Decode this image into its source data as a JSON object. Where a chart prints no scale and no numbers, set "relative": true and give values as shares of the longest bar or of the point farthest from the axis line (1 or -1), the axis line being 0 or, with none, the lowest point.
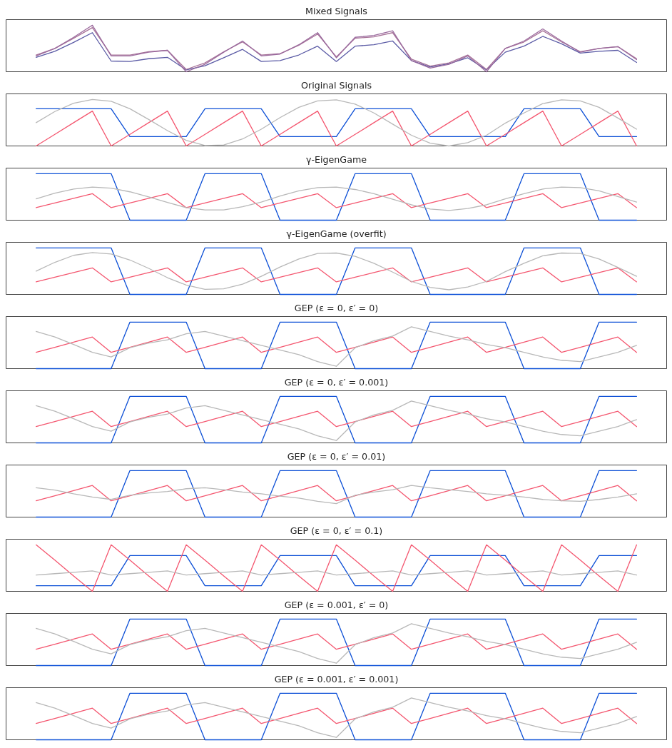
{
  "chart_data": [
    {
      "type": "line",
      "title": "Mixed Signals",
      "relative": true,
      "categories": [
        null,
        null,
        null,
        null,
        null,
        null,
        null,
        null,
        null,
        null,
        null,
        null,
        null,
        null,
        null,
        null,
        null,
        null,
        null,
        null,
        null,
        null,
        null,
        null,
        null,
        null,
        null,
        null,
        null,
        null,
        null,
        null,
        null
      ],
      "series": [
        {
          "color": "#5a5aa5",
          "values": [
            0.31,
            0.44,
            0.63,
            0.84,
            0.23,
            0.22,
            0.28,
            0.31,
            0.04,
            0.13,
            0.3,
            0.48,
            0.22,
            0.24,
            0.36,
            0.55,
            0.22,
            0.55,
            0.58,
            0.66,
            0.24,
            0.1,
            0.17,
            0.3,
            0.04,
            0.42,
            0.55,
            0.76,
            0.6,
            0.4,
            0.44,
            0.46,
            0.2
          ]
        },
        {
          "color": "#a77298",
          "values": [
            0.36,
            0.5,
            0.72,
            0.95,
            0.36,
            0.36,
            0.43,
            0.46,
            0.05,
            0.19,
            0.43,
            0.64,
            0.36,
            0.39,
            0.57,
            0.81,
            0.32,
            0.72,
            0.75,
            0.84,
            0.27,
            0.12,
            0.19,
            0.36,
            0.05,
            0.5,
            0.64,
            0.88,
            0.64,
            0.43,
            0.5,
            0.54,
            0.28
          ]
        },
        {
          "color": "#9b6b9e",
          "values": [
            0.34,
            0.5,
            0.74,
            1,
            0.34,
            0.34,
            0.42,
            0.46,
            0,
            0.16,
            0.42,
            0.66,
            0.34,
            0.38,
            0.58,
            0.84,
            0.3,
            0.74,
            0.78,
            0.88,
            0.24,
            0.08,
            0.16,
            0.34,
            0,
            0.5,
            0.66,
            0.92,
            0.66,
            0.42,
            0.5,
            0.54,
            0.26
          ]
        }
      ]
    },
    {
      "type": "line",
      "title": "Original Signals",
      "relative": true,
      "categories": [
        null,
        null,
        null,
        null,
        null,
        null,
        null,
        null,
        null,
        null,
        null,
        null,
        null,
        null,
        null,
        null,
        null,
        null,
        null,
        null,
        null,
        null,
        null,
        null,
        null,
        null,
        null,
        null,
        null,
        null,
        null,
        null,
        null
      ],
      "series": [
        {
          "color": "#0c4fd6",
          "values": [
            0.8,
            0.8,
            0.8,
            0.8,
            0.8,
            0.2,
            0.2,
            0.2,
            0.2,
            0.8,
            0.8,
            0.8,
            0.8,
            0.2,
            0.2,
            0.2,
            0.2,
            0.8,
            0.8,
            0.8,
            0.8,
            0.2,
            0.2,
            0.2,
            0.2,
            0.2,
            0.8,
            0.8,
            0.8,
            0.8,
            0.2,
            0.2,
            0.2
          ]
        },
        {
          "color": "#f4566f",
          "values": [
            0,
            0.25,
            0.5,
            0.75,
            0,
            0.25,
            0.5,
            0.75,
            0,
            0.25,
            0.5,
            0.75,
            0,
            0.25,
            0.5,
            0.75,
            0,
            0.25,
            0.5,
            0.75,
            0,
            0.25,
            0.5,
            0.75,
            0,
            0.25,
            0.5,
            0.75,
            0,
            0.25,
            0.5,
            0.75,
            0
          ]
        },
        {
          "color": "#b8b8b8",
          "values": [
            0.5,
            0.74,
            0.92,
            1,
            0.96,
            0.8,
            0.57,
            0.33,
            0.12,
            0.01,
            0.02,
            0.15,
            0.36,
            0.61,
            0.83,
            0.97,
            0.99,
            0.9,
            0.71,
            0.47,
            0.23,
            0.06,
            0,
            0.07,
            0.23,
            0.49,
            0.71,
            0.91,
            0.99,
            0.97,
            0.83,
            0.6,
            0.36
          ]
        }
      ]
    },
    {
      "type": "line",
      "title": "γ-EigenGame",
      "relative": true,
      "categories": [
        null,
        null,
        null,
        null,
        null,
        null,
        null,
        null,
        null,
        null,
        null,
        null,
        null,
        null,
        null,
        null,
        null,
        null,
        null,
        null,
        null,
        null,
        null,
        null,
        null,
        null,
        null,
        null,
        null,
        null,
        null,
        null,
        null
      ],
      "series": [
        {
          "color": "#0c4fd6",
          "values": [
            1,
            1,
            1,
            1,
            1,
            0,
            0,
            0,
            0,
            1,
            1,
            1,
            1,
            0,
            0,
            0,
            0,
            1,
            1,
            1,
            1,
            0,
            0,
            0,
            0,
            0,
            1,
            1,
            1,
            1,
            0,
            0,
            0
          ]
        },
        {
          "color": "#f4566f",
          "values": [
            0.27,
            0.37,
            0.47,
            0.57,
            0.27,
            0.37,
            0.47,
            0.57,
            0.27,
            0.37,
            0.47,
            0.57,
            0.27,
            0.37,
            0.47,
            0.57,
            0.27,
            0.37,
            0.47,
            0.57,
            0.27,
            0.37,
            0.47,
            0.57,
            0.27,
            0.37,
            0.47,
            0.57,
            0.27,
            0.37,
            0.47,
            0.57,
            0.27
          ]
        },
        {
          "color": "#b8b8b8",
          "values": [
            0.46,
            0.58,
            0.67,
            0.71,
            0.69,
            0.61,
            0.5,
            0.38,
            0.27,
            0.22,
            0.22,
            0.29,
            0.39,
            0.52,
            0.63,
            0.7,
            0.71,
            0.66,
            0.57,
            0.45,
            0.33,
            0.24,
            0.21,
            0.25,
            0.33,
            0.46,
            0.57,
            0.67,
            0.71,
            0.7,
            0.63,
            0.51,
            0.39
          ]
        }
      ]
    },
    {
      "type": "line",
      "title": "γ-EigenGame (overfit)",
      "relative": true,
      "categories": [
        null,
        null,
        null,
        null,
        null,
        null,
        null,
        null,
        null,
        null,
        null,
        null,
        null,
        null,
        null,
        null,
        null,
        null,
        null,
        null,
        null,
        null,
        null,
        null,
        null,
        null,
        null,
        null,
        null,
        null,
        null,
        null,
        null
      ],
      "series": [
        {
          "color": "#0c4fd6",
          "values": [
            1,
            1,
            1,
            1,
            1,
            0,
            0,
            0,
            0,
            1,
            1,
            1,
            1,
            0,
            0,
            0,
            0,
            1,
            1,
            1,
            1,
            0,
            0,
            0,
            0,
            0,
            1,
            1,
            1,
            1,
            0,
            0,
            0
          ]
        },
        {
          "color": "#f4566f",
          "values": [
            0.27,
            0.37,
            0.47,
            0.57,
            0.27,
            0.37,
            0.47,
            0.57,
            0.27,
            0.37,
            0.47,
            0.57,
            0.27,
            0.37,
            0.47,
            0.57,
            0.27,
            0.37,
            0.47,
            0.57,
            0.27,
            0.37,
            0.47,
            0.57,
            0.27,
            0.37,
            0.47,
            0.57,
            0.27,
            0.37,
            0.47,
            0.57,
            0.27
          ]
        },
        {
          "color": "#b8b8b8",
          "values": [
            0.5,
            0.69,
            0.84,
            0.9,
            0.87,
            0.74,
            0.56,
            0.36,
            0.2,
            0.11,
            0.12,
            0.22,
            0.39,
            0.59,
            0.76,
            0.88,
            0.89,
            0.82,
            0.67,
            0.48,
            0.28,
            0.15,
            0.1,
            0.16,
            0.28,
            0.49,
            0.67,
            0.83,
            0.89,
            0.88,
            0.76,
            0.58,
            0.39
          ]
        }
      ]
    },
    {
      "type": "line",
      "title": "GEP (ε = 0, ε′ = 0)",
      "relative": true,
      "categories": [
        null,
        null,
        null,
        null,
        null,
        null,
        null,
        null,
        null,
        null,
        null,
        null,
        null,
        null,
        null,
        null,
        null,
        null,
        null,
        null,
        null,
        null,
        null,
        null,
        null,
        null,
        null,
        null,
        null,
        null,
        null,
        null,
        null
      ],
      "series": [
        {
          "color": "#0c4fd6",
          "values": [
            0,
            0,
            0,
            0,
            0,
            1,
            1,
            1,
            1,
            0,
            0,
            0,
            0,
            1,
            1,
            1,
            1,
            0,
            0,
            0,
            0,
            1,
            1,
            1,
            1,
            1,
            0,
            0,
            0,
            0,
            1,
            1,
            1
          ]
        },
        {
          "color": "#f4566f",
          "values": [
            0.35,
            0.46,
            0.57,
            0.68,
            0.35,
            0.46,
            0.57,
            0.68,
            0.35,
            0.46,
            0.57,
            0.68,
            0.35,
            0.46,
            0.57,
            0.68,
            0.35,
            0.46,
            0.57,
            0.68,
            0.35,
            0.46,
            0.57,
            0.68,
            0.35,
            0.46,
            0.57,
            0.68,
            0.35,
            0.46,
            0.57,
            0.68,
            0.35
          ]
        },
        {
          "color": "#b8b8b8",
          "values": [
            0.8,
            0.68,
            0.52,
            0.35,
            0.25,
            0.45,
            0.55,
            0.62,
            0.75,
            0.8,
            0.7,
            0.6,
            0.5,
            0.4,
            0.3,
            0.15,
            0.05,
            0.45,
            0.6,
            0.7,
            0.9,
            0.8,
            0.7,
            0.62,
            0.52,
            0.45,
            0.35,
            0.25,
            0.18,
            0.15,
            0.25,
            0.35,
            0.5
          ]
        }
      ]
    },
    {
      "type": "line",
      "title": "GEP (ε = 0, ε′ = 0.001)",
      "relative": true,
      "categories": [
        null,
        null,
        null,
        null,
        null,
        null,
        null,
        null,
        null,
        null,
        null,
        null,
        null,
        null,
        null,
        null,
        null,
        null,
        null,
        null,
        null,
        null,
        null,
        null,
        null,
        null,
        null,
        null,
        null,
        null,
        null,
        null,
        null
      ],
      "series": [
        {
          "color": "#0c4fd6",
          "values": [
            0,
            0,
            0,
            0,
            0,
            1,
            1,
            1,
            1,
            0,
            0,
            0,
            0,
            1,
            1,
            1,
            1,
            0,
            0,
            0,
            0,
            1,
            1,
            1,
            1,
            1,
            0,
            0,
            0,
            0,
            1,
            1,
            1
          ]
        },
        {
          "color": "#f4566f",
          "values": [
            0.35,
            0.46,
            0.57,
            0.68,
            0.35,
            0.46,
            0.57,
            0.68,
            0.35,
            0.46,
            0.57,
            0.68,
            0.35,
            0.46,
            0.57,
            0.68,
            0.35,
            0.46,
            0.57,
            0.68,
            0.35,
            0.46,
            0.57,
            0.68,
            0.35,
            0.46,
            0.57,
            0.68,
            0.35,
            0.46,
            0.57,
            0.68,
            0.35
          ]
        },
        {
          "color": "#b8b8b8",
          "values": [
            0.8,
            0.68,
            0.52,
            0.35,
            0.25,
            0.45,
            0.55,
            0.62,
            0.75,
            0.8,
            0.7,
            0.6,
            0.5,
            0.4,
            0.3,
            0.15,
            0.05,
            0.45,
            0.6,
            0.7,
            0.9,
            0.8,
            0.7,
            0.62,
            0.52,
            0.45,
            0.35,
            0.25,
            0.18,
            0.15,
            0.25,
            0.35,
            0.5
          ]
        }
      ]
    },
    {
      "type": "line",
      "title": "GEP (ε = 0, ε′ = 0.01)",
      "relative": true,
      "categories": [
        null,
        null,
        null,
        null,
        null,
        null,
        null,
        null,
        null,
        null,
        null,
        null,
        null,
        null,
        null,
        null,
        null,
        null,
        null,
        null,
        null,
        null,
        null,
        null,
        null,
        null,
        null,
        null,
        null,
        null,
        null,
        null,
        null
      ],
      "series": [
        {
          "color": "#0c4fd6",
          "values": [
            0,
            0,
            0,
            0,
            0,
            1,
            1,
            1,
            1,
            0,
            0,
            0,
            0,
            1,
            1,
            1,
            1,
            0,
            0,
            0,
            0,
            1,
            1,
            1,
            1,
            1,
            0,
            0,
            0,
            0,
            1,
            1,
            1
          ]
        },
        {
          "color": "#f4566f",
          "values": [
            0.35,
            0.46,
            0.57,
            0.68,
            0.35,
            0.46,
            0.57,
            0.68,
            0.35,
            0.46,
            0.57,
            0.68,
            0.35,
            0.46,
            0.57,
            0.68,
            0.35,
            0.46,
            0.57,
            0.68,
            0.35,
            0.46,
            0.57,
            0.68,
            0.35,
            0.46,
            0.57,
            0.68,
            0.35,
            0.46,
            0.57,
            0.68,
            0.35
          ]
        },
        {
          "color": "#b8b8b8",
          "values": [
            0.63,
            0.58,
            0.5,
            0.43,
            0.38,
            0.47,
            0.52,
            0.55,
            0.61,
            0.63,
            0.59,
            0.54,
            0.5,
            0.45,
            0.41,
            0.34,
            0.29,
            0.47,
            0.54,
            0.59,
            0.68,
            0.63,
            0.59,
            0.55,
            0.5,
            0.47,
            0.43,
            0.38,
            0.35,
            0.34,
            0.38,
            0.43,
            0.5
          ]
        }
      ]
    },
    {
      "type": "line",
      "title": "GEP (ε = 0, ε′ = 0.1)",
      "relative": true,
      "categories": [
        null,
        null,
        null,
        null,
        null,
        null,
        null,
        null,
        null,
        null,
        null,
        null,
        null,
        null,
        null,
        null,
        null,
        null,
        null,
        null,
        null,
        null,
        null,
        null,
        null,
        null,
        null,
        null,
        null,
        null,
        null,
        null,
        null
      ],
      "series": [
        {
          "color": "#0c4fd6",
          "values": [
            0.12,
            0.12,
            0.12,
            0.12,
            0.12,
            0.77,
            0.77,
            0.77,
            0.77,
            0.12,
            0.12,
            0.12,
            0.12,
            0.77,
            0.77,
            0.77,
            0.77,
            0.12,
            0.12,
            0.12,
            0.12,
            0.77,
            0.77,
            0.77,
            0.77,
            0.77,
            0.12,
            0.12,
            0.12,
            0.12,
            0.77,
            0.77,
            0.77
          ]
        },
        {
          "color": "#f4566f",
          "values": [
            1,
            0.67,
            0.33,
            0,
            1,
            0.67,
            0.33,
            0,
            1,
            0.67,
            0.33,
            0,
            1,
            0.67,
            0.33,
            0,
            1,
            0.67,
            0.33,
            0,
            1,
            0.67,
            0.33,
            0,
            1,
            0.67,
            0.33,
            0,
            1,
            0.67,
            0.33,
            0,
            1
          ]
        },
        {
          "color": "#b8b8b8",
          "values": [
            0.35,
            0.38,
            0.41,
            0.44,
            0.35,
            0.38,
            0.41,
            0.44,
            0.35,
            0.38,
            0.41,
            0.44,
            0.35,
            0.38,
            0.41,
            0.44,
            0.35,
            0.38,
            0.41,
            0.44,
            0.35,
            0.38,
            0.41,
            0.44,
            0.35,
            0.38,
            0.41,
            0.44,
            0.35,
            0.38,
            0.41,
            0.44,
            0.35
          ]
        }
      ]
    },
    {
      "type": "line",
      "title": "GEP (ε = 0.001, ε′ = 0)",
      "relative": true,
      "categories": [
        null,
        null,
        null,
        null,
        null,
        null,
        null,
        null,
        null,
        null,
        null,
        null,
        null,
        null,
        null,
        null,
        null,
        null,
        null,
        null,
        null,
        null,
        null,
        null,
        null,
        null,
        null,
        null,
        null,
        null,
        null,
        null,
        null
      ],
      "series": [
        {
          "color": "#0c4fd6",
          "values": [
            0,
            0,
            0,
            0,
            0,
            1,
            1,
            1,
            1,
            0,
            0,
            0,
            0,
            1,
            1,
            1,
            1,
            0,
            0,
            0,
            0,
            1,
            1,
            1,
            1,
            1,
            0,
            0,
            0,
            0,
            1,
            1,
            1
          ]
        },
        {
          "color": "#f4566f",
          "values": [
            0.35,
            0.46,
            0.57,
            0.68,
            0.35,
            0.46,
            0.57,
            0.68,
            0.35,
            0.46,
            0.57,
            0.68,
            0.35,
            0.46,
            0.57,
            0.68,
            0.35,
            0.46,
            0.57,
            0.68,
            0.35,
            0.46,
            0.57,
            0.68,
            0.35,
            0.46,
            0.57,
            0.68,
            0.35,
            0.46,
            0.57,
            0.68,
            0.35
          ]
        },
        {
          "color": "#b8b8b8",
          "values": [
            0.8,
            0.68,
            0.52,
            0.35,
            0.25,
            0.45,
            0.55,
            0.62,
            0.75,
            0.8,
            0.7,
            0.6,
            0.5,
            0.4,
            0.3,
            0.15,
            0.05,
            0.45,
            0.6,
            0.7,
            0.9,
            0.8,
            0.7,
            0.62,
            0.52,
            0.45,
            0.35,
            0.25,
            0.18,
            0.15,
            0.25,
            0.35,
            0.5
          ]
        }
      ]
    },
    {
      "type": "line",
      "title": "GEP (ε = 0.001, ε′ = 0.001)",
      "relative": true,
      "categories": [
        null,
        null,
        null,
        null,
        null,
        null,
        null,
        null,
        null,
        null,
        null,
        null,
        null,
        null,
        null,
        null,
        null,
        null,
        null,
        null,
        null,
        null,
        null,
        null,
        null,
        null,
        null,
        null,
        null,
        null,
        null,
        null,
        null
      ],
      "series": [
        {
          "color": "#0c4fd6",
          "values": [
            0,
            0,
            0,
            0,
            0,
            1,
            1,
            1,
            1,
            0,
            0,
            0,
            0,
            1,
            1,
            1,
            1,
            0,
            0,
            0,
            0,
            1,
            1,
            1,
            1,
            1,
            0,
            0,
            0,
            0,
            1,
            1,
            1
          ]
        },
        {
          "color": "#f4566f",
          "values": [
            0.35,
            0.46,
            0.57,
            0.68,
            0.35,
            0.46,
            0.57,
            0.68,
            0.35,
            0.46,
            0.57,
            0.68,
            0.35,
            0.46,
            0.57,
            0.68,
            0.35,
            0.46,
            0.57,
            0.68,
            0.35,
            0.46,
            0.57,
            0.68,
            0.35,
            0.46,
            0.57,
            0.68,
            0.35,
            0.46,
            0.57,
            0.68,
            0.35
          ]
        },
        {
          "color": "#b8b8b8",
          "values": [
            0.8,
            0.68,
            0.52,
            0.35,
            0.25,
            0.45,
            0.55,
            0.62,
            0.75,
            0.8,
            0.7,
            0.6,
            0.5,
            0.4,
            0.3,
            0.15,
            0.05,
            0.45,
            0.6,
            0.7,
            0.9,
            0.8,
            0.7,
            0.62,
            0.52,
            0.45,
            0.35,
            0.25,
            0.18,
            0.15,
            0.25,
            0.35,
            0.5
          ]
        }
      ]
    }
  ]
}
